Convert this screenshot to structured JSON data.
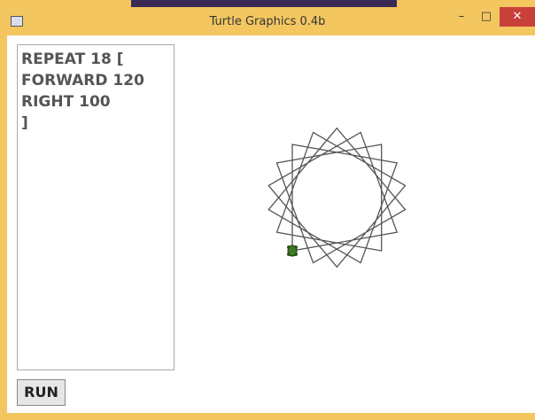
{
  "window": {
    "title": "Turtle Graphics 0.4b"
  },
  "editor": {
    "lines": [
      "REPEAT 18 [",
      "FORWARD 120",
      "RIGHT 100",
      "]"
    ]
  },
  "button": {
    "label": "RUN"
  }
}
